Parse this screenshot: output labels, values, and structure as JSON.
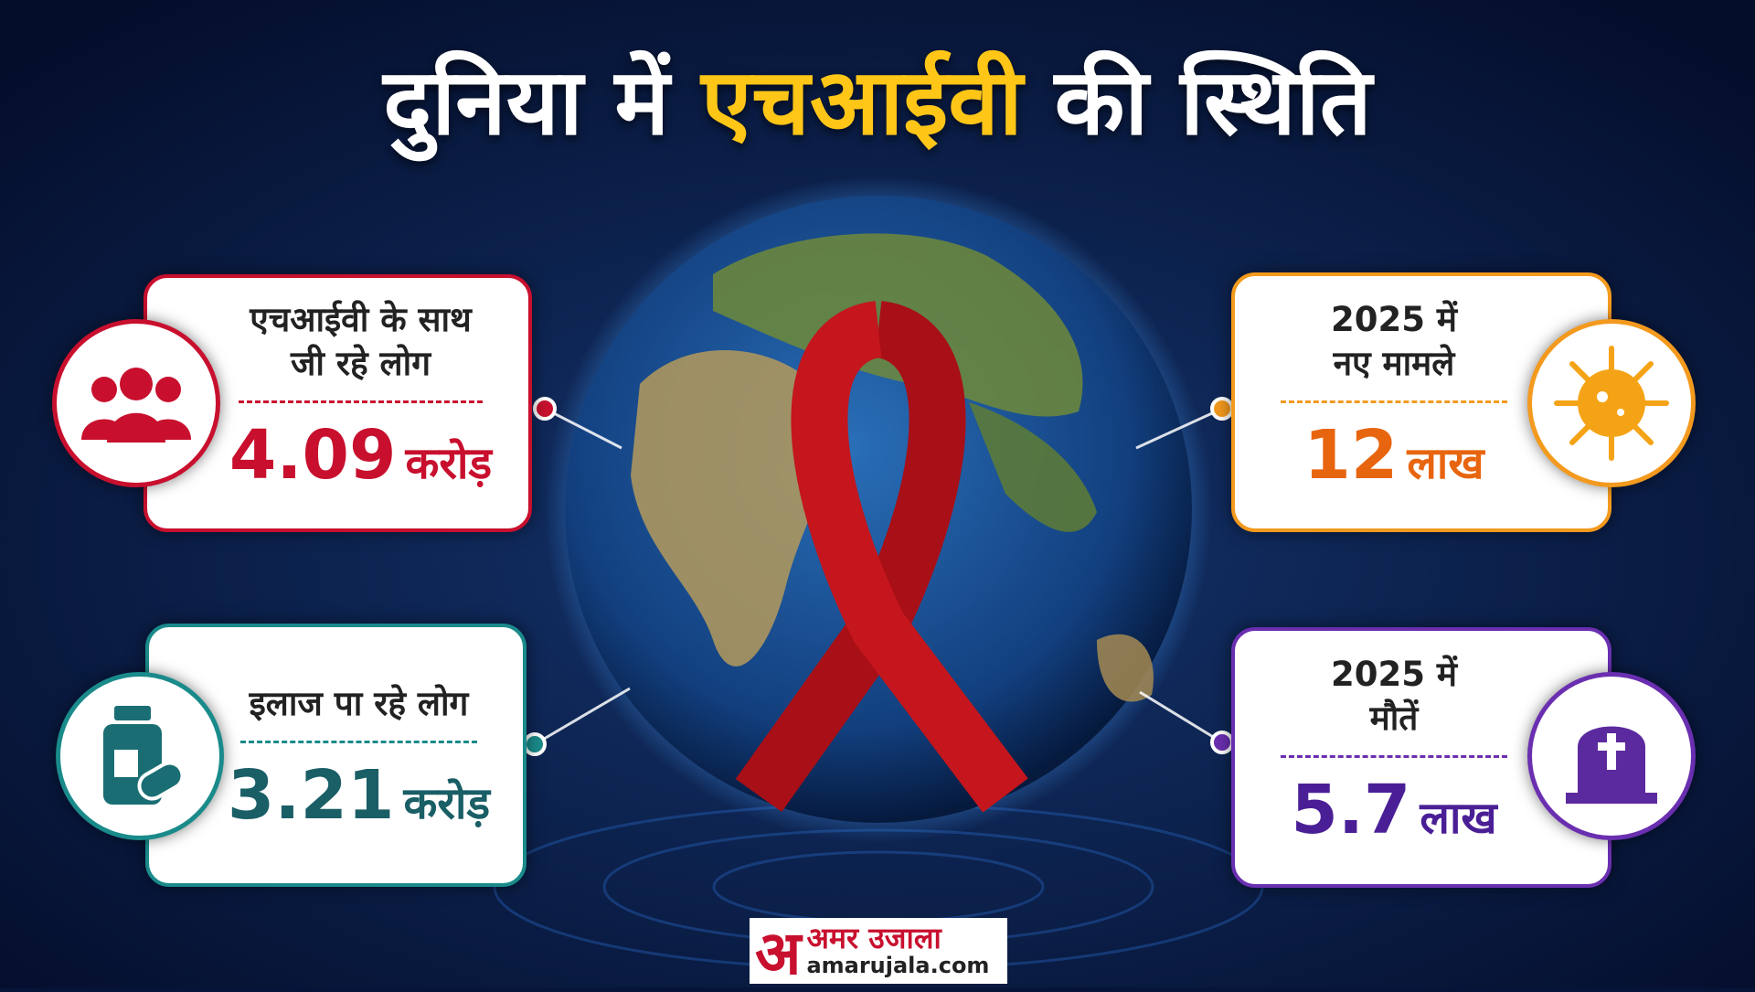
{
  "header": {
    "title_prefix": "दुनिया में",
    "title_highlight": "एचआईवी",
    "title_suffix": "की स्थिति"
  },
  "cards": [
    {
      "label_lines": [
        "एचआईवी के साथ",
        "जी रहे लोग"
      ],
      "value": "4.09",
      "unit": "करोड़"
    },
    {
      "label_lines": [
        "इलाज पा रहे लोग"
      ],
      "value": "3.21",
      "unit": "करोड़"
    },
    {
      "label_lines": [
        "2025 में",
        "नए मामले"
      ],
      "value": "12",
      "unit": "लाख"
    },
    {
      "label_lines": [
        "2025 में",
        "मौतें"
      ],
      "value": "5.7",
      "unit": "लाख"
    }
  ],
  "logo": {
    "mark": "अ",
    "name": "अमर उजाला",
    "site": "amarujala.com"
  }
}
